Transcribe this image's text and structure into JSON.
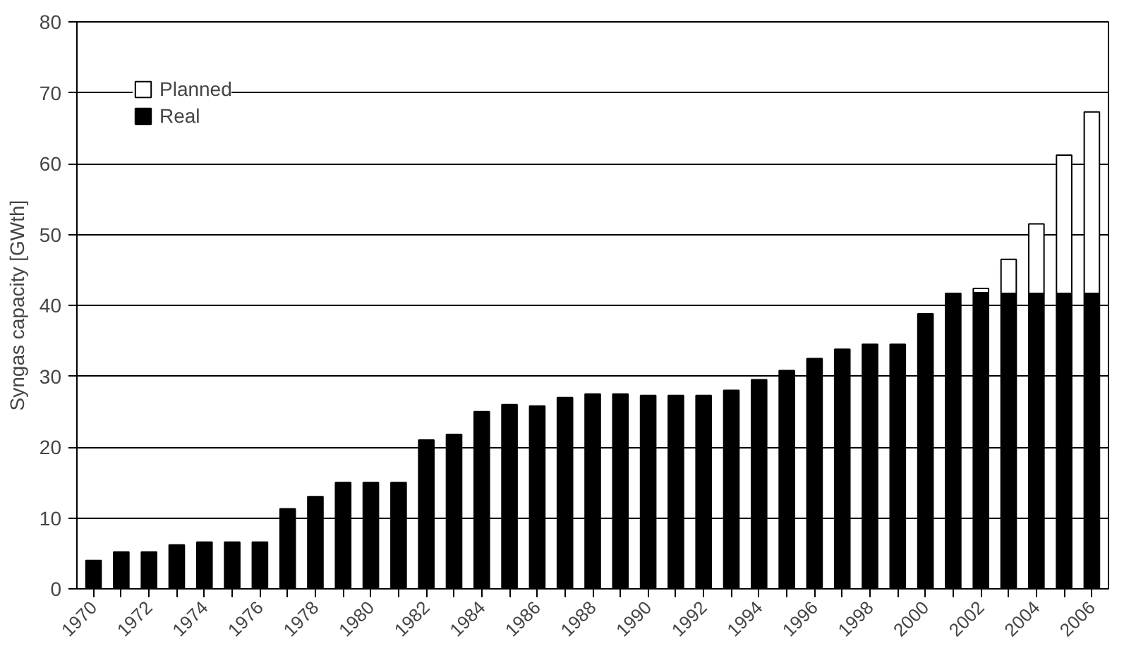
{
  "chart_data": {
    "type": "bar",
    "stacked": true,
    "ylabel": "Syngas capacity [GWth]",
    "categories": [
      "1970",
      null,
      "1972",
      null,
      "1974",
      null,
      "1976",
      null,
      "1978",
      null,
      "1980",
      null,
      "1982",
      null,
      "1984",
      null,
      "1986",
      null,
      "1988",
      null,
      "1990",
      null,
      "1992",
      null,
      "1994",
      null,
      "1996",
      null,
      "1998",
      null,
      "2000",
      null,
      "2002",
      null,
      "2004",
      null,
      "2006"
    ],
    "series": [
      {
        "name": "Real",
        "color": "#000000",
        "values": [
          4,
          5.2,
          5.2,
          6.2,
          6.6,
          6.6,
          6.6,
          11.3,
          13,
          15,
          15,
          15,
          21,
          21.8,
          25,
          26,
          25.8,
          27,
          27.5,
          27.5,
          27.3,
          27.3,
          27.3,
          28,
          29.5,
          30.8,
          32.5,
          33.8,
          34.5,
          34.5,
          38.8,
          41.7,
          41.8,
          41.7,
          41.7,
          41.7,
          41.7
        ]
      },
      {
        "name": "Planned",
        "color": "#ffffff",
        "values": [
          null,
          null,
          null,
          null,
          null,
          null,
          null,
          null,
          null,
          null,
          null,
          null,
          null,
          null,
          null,
          null,
          null,
          null,
          null,
          null,
          null,
          null,
          null,
          null,
          null,
          null,
          null,
          null,
          null,
          null,
          null,
          null,
          0.6,
          4.8,
          9.8,
          19.5,
          25.6
        ]
      }
    ],
    "ylim": [
      0,
      80
    ],
    "yticks": [
      0,
      10,
      20,
      30,
      40,
      50,
      60,
      70,
      80
    ],
    "grid": "y",
    "legend": "top left"
  }
}
